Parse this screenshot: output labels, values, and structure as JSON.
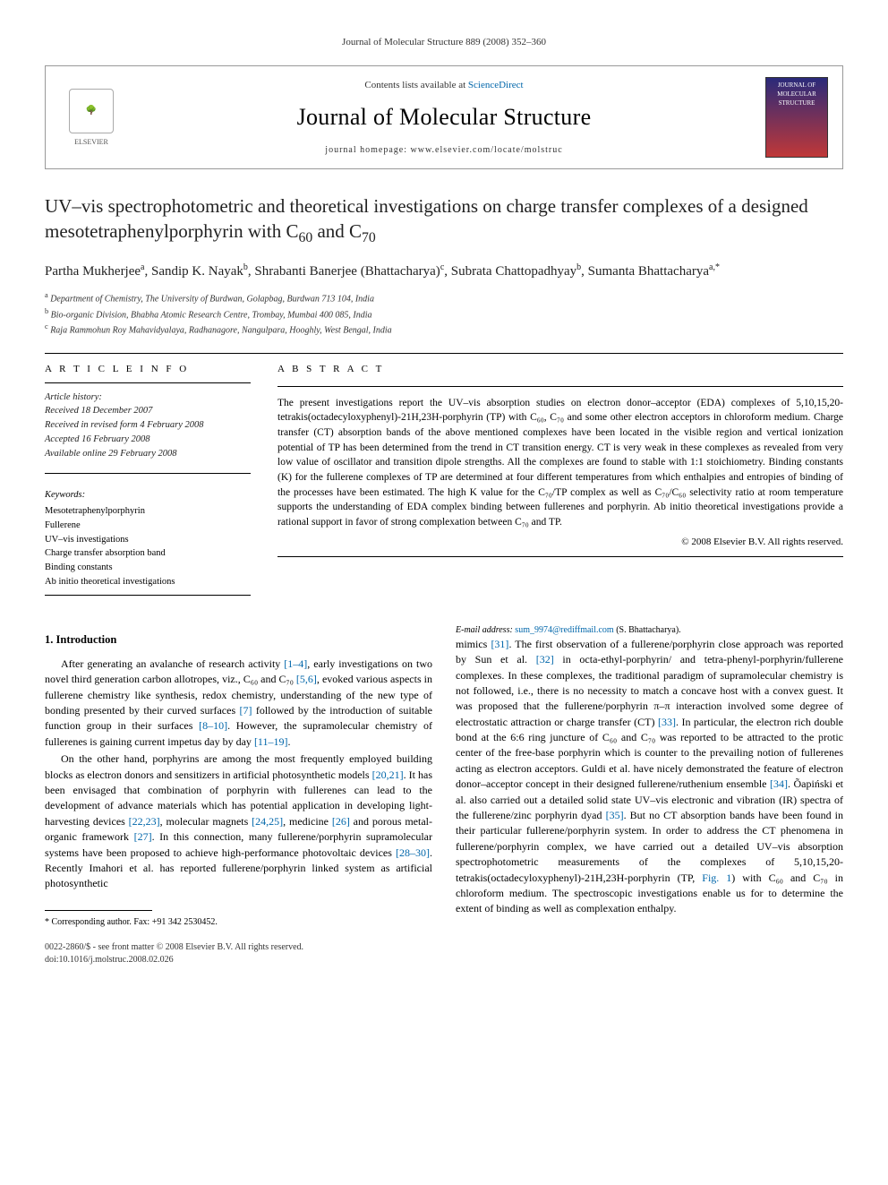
{
  "running_head": "Journal of Molecular Structure 889 (2008) 352–360",
  "header": {
    "contents_prefix": "Contents lists available at ",
    "contents_link": "ScienceDirect",
    "journal_name": "Journal of Molecular Structure",
    "homepage_prefix": "journal homepage: ",
    "homepage_url": "www.elsevier.com/locate/molstruc",
    "publisher_name": "ELSEVIER",
    "cover_text": "JOURNAL OF MOLECULAR STRUCTURE"
  },
  "article": {
    "title_pre": "UV–vis spectrophotometric and theoretical investigations on charge transfer complexes of a designed mesotetraphenylporphyrin with C",
    "title_sub1": "60",
    "title_mid": " and C",
    "title_sub2": "70",
    "authors_html": "Partha Mukherjee<sup>a</sup>, Sandip K. Nayak<sup>b</sup>, Shrabanti Banerjee (Bhattacharya)<sup>c</sup>, Subrata Chattopadhyay<sup>b</sup>, Sumanta Bhattacharya<sup>a,*</sup>",
    "authors_plain": "Partha Mukherjee a, Sandip K. Nayak b, Shrabanti Banerjee (Bhattacharya) c, Subrata Chattopadhyay b, Sumanta Bhattacharya a,*",
    "affiliations": {
      "a": "Department of Chemistry, The University of Burdwan, Golapbag, Burdwan 713 104, India",
      "b": "Bio-organic Division, Bhabha Atomic Research Centre, Trombay, Mumbai 400 085, India",
      "c": "Raja Rammohun Roy Mahavidyalaya, Radhanagore, Nangulpara, Hooghly, West Bengal, India"
    }
  },
  "info": {
    "label": "A R T I C L E   I N F O",
    "history_label": "Article history:",
    "received": "Received 18 December 2007",
    "revised": "Received in revised form 4 February 2008",
    "accepted": "Accepted 16 February 2008",
    "online": "Available online 29 February 2008",
    "keywords_label": "Keywords:",
    "keywords": [
      "Mesotetraphenylporphyrin",
      "Fullerene",
      "UV–vis investigations",
      "Charge transfer absorption band",
      "Binding constants",
      "Ab initio theoretical investigations"
    ]
  },
  "abstract": {
    "label": "A B S T R A C T",
    "text": "The present investigations report the UV–vis absorption studies on electron donor–acceptor (EDA) complexes of 5,10,15,20-tetrakis(octadecyloxyphenyl)-21H,23H-porphyrin (TP) with C₆₀, C₇₀ and some other electron acceptors in chloroform medium. Charge transfer (CT) absorption bands of the above mentioned complexes have been located in the visible region and vertical ionization potential of TP has been determined from the trend in CT transition energy. CT is very weak in these complexes as revealed from very low value of oscillator and transition dipole strengths. All the complexes are found to stable with 1:1 stoichiometry. Binding constants (K) for the fullerene complexes of TP are determined at four different temperatures from which enthalpies and entropies of binding of the processes have been estimated. The high K value for the C₇₀/TP complex as well as C₇₀/C₆₀ selectivity ratio at room temperature supports the understanding of EDA complex binding between fullerenes and porphyrin. Ab initio theoretical investigations provide a rational support in favor of strong complexation between C₇₀ and TP.",
    "copyright": "© 2008 Elsevier B.V. All rights reserved."
  },
  "body": {
    "heading1": "1. Introduction",
    "p1": "After generating an avalanche of research activity [1–4], early investigations on two novel third generation carbon allotropes, viz., C₆₀ and C₇₀ [5,6], evoked various aspects in fullerene chemistry like synthesis, redox chemistry, understanding of the new type of bonding presented by their curved surfaces [7] followed by the introduction of suitable function group in their surfaces [8–10]. However, the supramolecular chemistry of fullerenes is gaining current impetus day by day [11–19].",
    "p2": "On the other hand, porphyrins are among the most frequently employed building blocks as electron donors and sensitizers in artificial photosynthetic models [20,21]. It has been envisaged that combination of porphyrin with fullerenes can lead to the development of advance materials which has potential application in developing light-harvesting devices [22,23], molecular magnets [24,25], medicine [26] and porous metal-organic framework [27]. In this connection, many fullerene/porphyrin supramolecular systems have been proposed to achieve high-performance photovoltaic devices [28–30]. Recently Imahori et al. has reported fullerene/porphyrin linked system as artificial photosynthetic",
    "p3": "mimics [31]. The first observation of a fullerene/porphyrin close approach was reported by Sun et al. [32] in octa-ethyl-porphyrin/ and tetra-phenyl-porphyrin/fullerene complexes. In these complexes, the traditional paradigm of supramolecular chemistry is not followed, i.e., there is no necessity to match a concave host with a convex guest. It was proposed that the fullerene/porphyrin π–π interaction involved some degree of electrostatic attraction or charge transfer (CT) [33]. In particular, the electron rich double bond at the 6:6 ring juncture of C₆₀ and C₇₀ was reported to be attracted to the protic center of the free-base porphyrin which is counter to the prevailing notion of fullerenes acting as electron acceptors. Guldi et al. have nicely demonstrated the feature of electron donor–acceptor concept in their designed fullerene/ruthenium ensemble [34]. Õapiński et al. also carried out a detailed solid state UV–vis electronic and vibration (IR) spectra of the fullerene/zinc porphyrin dyad [35]. But no CT absorption bands have been found in their particular fullerene/porphyrin system. In order to address the CT phenomena in fullerene/porphyrin complex, we have carried out a detailed UV–vis absorption spectrophotometric measurements of the complexes of 5,10,15,20-tetrakis(octadecyloxyphenyl)-21H,23H-porphyrin (TP, Fig. 1) with C₆₀ and C₇₀ in chloroform medium. The spectroscopic investigations enable us for to determine the extent of binding as well as complexation enthalpy."
  },
  "footnote": {
    "corr": "* Corresponding author. Fax: +91 342 2530452.",
    "email_label": "E-mail address:",
    "email": "sum_9974@rediffmail.com",
    "email_person": "(S. Bhattacharya)."
  },
  "footer": {
    "line1": "0022-2860/$ - see front matter © 2008 Elsevier B.V. All rights reserved.",
    "line2": "doi:10.1016/j.molstruc.2008.02.026"
  },
  "cite_color": "#0066aa"
}
